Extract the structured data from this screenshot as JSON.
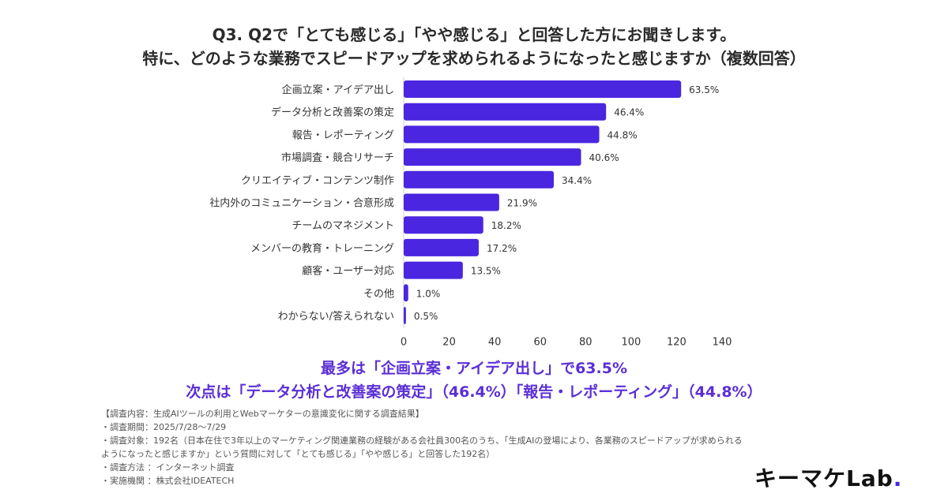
{
  "title_line1": "Q3. Q2で「とても感じる」「やや感じる」と回答した方にお聞きします。",
  "title_line2": "特に、どのような業務でスピードアップを求められるようになったと感じますか（複数回答）",
  "chart_data": {
    "type": "bar",
    "orientation": "horizontal",
    "categories": [
      "企画立案・アイデア出し",
      "データ分析と改善案の策定",
      "報告・レポーティング",
      "市場調査・競合リサーチ",
      "クリエイティブ・コンテンツ制作",
      "社内外のコミュニケーション・合意形成",
      "チームのマネジメント",
      "メンバーの教育・トレーニング",
      "顧客・ユーザー対応",
      "その他",
      "わからない/答えられない"
    ],
    "values": [
      122,
      89,
      86,
      78,
      66,
      42,
      35,
      33,
      26,
      2,
      1
    ],
    "labels": [
      "63.5%",
      "46.4%",
      "44.8%",
      "40.6%",
      "34.4%",
      "21.9%",
      "18.2%",
      "17.2%",
      "13.5%",
      "1.0%",
      "0.5%"
    ],
    "xlim": [
      0,
      140
    ],
    "xticks": [
      0,
      20,
      40,
      60,
      80,
      100,
      120,
      140
    ],
    "bar_color": "#4a26e0",
    "grid": false
  },
  "highlight_line1": "最多は「企画立案・アイデア出し」で63.5%",
  "highlight_line2": "次点は「データ分析と改善案の策定」（46.4%）「報告・レポーティング」（44.8%）",
  "notes": [
    "【調査内容：生成AIツールの利用とWebマーケターの意識変化に関する調査結果】",
    "・調査期間：2025/7/28〜7/29",
    "・調査対象：192名（日本在住で3年以上のマーケティング関連業務の経験がある会社員300名のうち、「生成AIの登場により、各業務のスピードアップが求められる",
    "ようになったと感じますか」という質問に対して「とても感じる」「やや感じる」と回答した192名）",
    "・調査方法 ：インターネット調査",
    "・実施機関 ：株式会社IDEATECH"
  ],
  "logo_text": "キーマケLab",
  "logo_dot": "."
}
